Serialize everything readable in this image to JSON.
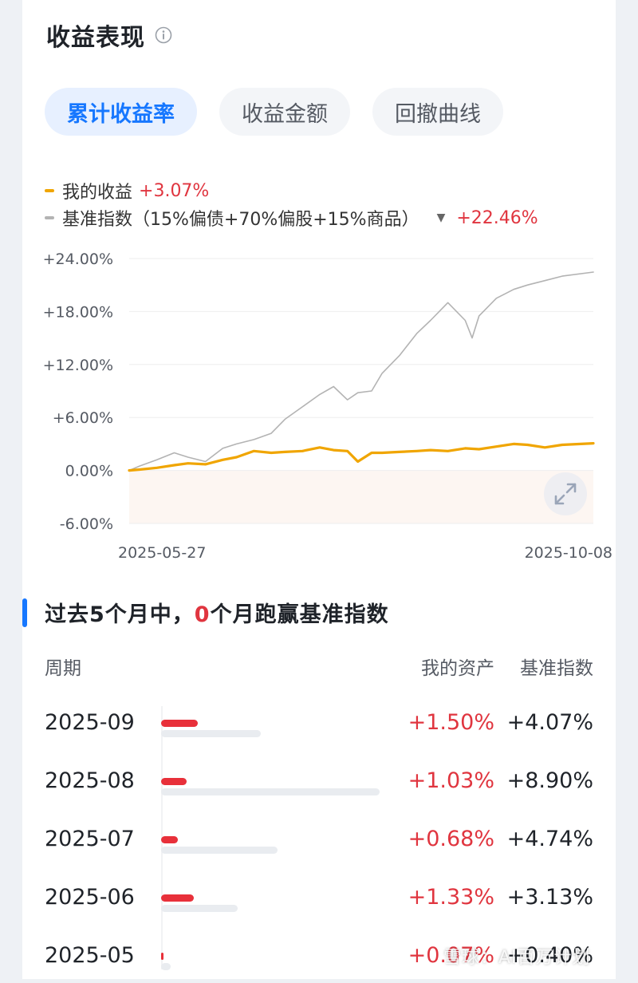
{
  "header": {
    "title": "收益表现",
    "info_icon": "info-icon"
  },
  "tabs": [
    {
      "label": "累计收益率",
      "active": true
    },
    {
      "label": "收益金额",
      "active": false
    },
    {
      "label": "回撤曲线",
      "active": false
    }
  ],
  "legend": {
    "mine": {
      "label": "我的收益",
      "value": "+3.07%",
      "color": "#f0a500"
    },
    "benchmark": {
      "label": "基准指数（15%偏债+70%偏股+15%商品）",
      "value": "+22.46%",
      "color": "#b3b3b3"
    }
  },
  "chart_data": {
    "type": "line",
    "title": "",
    "xlabel": "",
    "ylabel": "",
    "x_tick_labels": [
      "2025-05-27",
      "2025-10-08"
    ],
    "x_range": [
      "2025-05-27",
      "2025-10-08"
    ],
    "y_tick_labels": [
      "+24.00%",
      "+18.00%",
      "+12.00%",
      "+6.00%",
      "0.00%",
      "-6.00%"
    ],
    "y_ticks": [
      24,
      18,
      12,
      6,
      0,
      -6
    ],
    "ylim": [
      -6,
      24
    ],
    "grid": true,
    "negative_area_fill": true,
    "series": [
      {
        "name": "我的收益",
        "color": "#f0a500",
        "x": [
          "2025-05-27",
          "2025-05-30",
          "2025-06-04",
          "2025-06-09",
          "2025-06-13",
          "2025-06-18",
          "2025-06-23",
          "2025-06-27",
          "2025-07-02",
          "2025-07-07",
          "2025-07-11",
          "2025-07-16",
          "2025-07-21",
          "2025-07-25",
          "2025-07-29",
          "2025-08-01",
          "2025-08-05",
          "2025-08-08",
          "2025-08-13",
          "2025-08-18",
          "2025-08-22",
          "2025-08-27",
          "2025-09-01",
          "2025-09-05",
          "2025-09-10",
          "2025-09-15",
          "2025-09-19",
          "2025-09-24",
          "2025-09-29",
          "2025-10-08"
        ],
        "values": [
          0.0,
          0.1,
          0.3,
          0.6,
          0.8,
          0.7,
          1.2,
          1.5,
          2.2,
          2.0,
          2.1,
          2.2,
          2.6,
          2.3,
          2.2,
          1.0,
          2.0,
          2.0,
          2.1,
          2.2,
          2.3,
          2.2,
          2.5,
          2.4,
          2.7,
          3.0,
          2.9,
          2.6,
          2.9,
          3.07
        ]
      },
      {
        "name": "基准指数（15%偏债+70%偏股+15%商品）",
        "color": "#b3b3b3",
        "x": [
          "2025-05-27",
          "2025-05-30",
          "2025-06-04",
          "2025-06-09",
          "2025-06-13",
          "2025-06-18",
          "2025-06-23",
          "2025-06-27",
          "2025-07-02",
          "2025-07-07",
          "2025-07-11",
          "2025-07-16",
          "2025-07-21",
          "2025-07-25",
          "2025-07-29",
          "2025-08-01",
          "2025-08-05",
          "2025-08-08",
          "2025-08-13",
          "2025-08-18",
          "2025-08-22",
          "2025-08-27",
          "2025-09-01",
          "2025-09-03",
          "2025-09-05",
          "2025-09-10",
          "2025-09-15",
          "2025-09-19",
          "2025-09-24",
          "2025-09-29",
          "2025-10-08"
        ],
        "values": [
          0.0,
          0.5,
          1.2,
          2.0,
          1.5,
          1.0,
          2.5,
          3.0,
          3.5,
          4.2,
          5.8,
          7.2,
          8.6,
          9.5,
          8.0,
          8.8,
          9.0,
          11.0,
          13.0,
          15.5,
          17.0,
          19.0,
          17.0,
          15.0,
          17.5,
          19.5,
          20.5,
          21.0,
          21.5,
          22.0,
          22.46
        ]
      }
    ]
  },
  "chart_controls": {
    "expand_icon": "expand-icon"
  },
  "section": {
    "title_prefix": "过去5个月中，",
    "win_count": "0",
    "title_suffix": "个月跑赢基准指数"
  },
  "table": {
    "headers": {
      "period": "周期",
      "mine": "我的资产",
      "benchmark": "基准指数"
    },
    "scale_max_pct": 8.9,
    "rows": [
      {
        "period": "2025-09",
        "mine": "+1.50%",
        "benchmark": "+4.07%",
        "mine_pct": 1.5,
        "benchmark_pct": 4.07
      },
      {
        "period": "2025-08",
        "mine": "+1.03%",
        "benchmark": "+8.90%",
        "mine_pct": 1.03,
        "benchmark_pct": 8.9
      },
      {
        "period": "2025-07",
        "mine": "+0.68%",
        "benchmark": "+4.74%",
        "mine_pct": 0.68,
        "benchmark_pct": 4.74
      },
      {
        "period": "2025-06",
        "mine": "+1.33%",
        "benchmark": "+3.13%",
        "mine_pct": 1.33,
        "benchmark_pct": 3.13
      },
      {
        "period": "2025-05",
        "mine": "+0.07%",
        "benchmark": "+0.40%",
        "mine_pct": 0.07,
        "benchmark_pct": 0.4
      }
    ]
  },
  "watermark": "雪球：AI百万计划"
}
